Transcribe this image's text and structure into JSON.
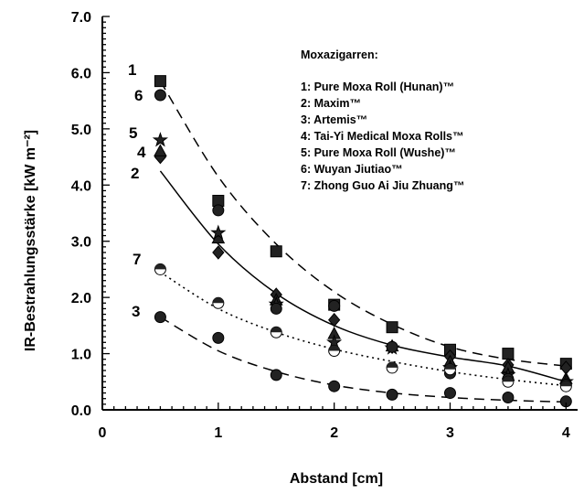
{
  "chart_data": {
    "type": "scatter",
    "xlabel": "Abstand [cm]",
    "ylabel": "IR-Bestrahlungsstärke  [kW m⁻²]",
    "xlim": [
      0,
      4.1
    ],
    "ylim": [
      0,
      7.0
    ],
    "x_ticks": [
      "0",
      "1",
      "2",
      "3",
      "4"
    ],
    "y_ticks": [
      "0.0",
      "1.0",
      "2.0",
      "3.0",
      "4.0",
      "5.0",
      "6.0",
      "7.0"
    ],
    "grid": false,
    "legend": {
      "title": "Moxazigarren:",
      "placement": "top-right",
      "entries": [
        "1: Pure Moxa Roll (Hunan)™",
        "2: Maxim™",
        "3: Artemis™",
        "4: Tai-Yi Medical Moxa Rolls™",
        "5: Pure Moxa Roll (Wushe)™",
        "6: Wuyan Jiutiao™",
        "7: Zhong Guo Ai Jiu Zhuang™"
      ]
    },
    "series_labels": [
      "1",
      "6",
      "5",
      "4",
      "2",
      "7",
      "3"
    ],
    "x": [
      0.5,
      1.0,
      1.5,
      2.0,
      2.5,
      3.0,
      3.5,
      4.0
    ],
    "series": [
      {
        "name": "1",
        "marker": "square",
        "values": [
          5.85,
          3.72,
          2.82,
          1.87,
          1.47,
          1.07,
          1.0,
          0.82
        ]
      },
      {
        "name": "2",
        "marker": "diamond",
        "values": [
          4.5,
          2.8,
          2.05,
          1.6,
          1.12,
          0.95,
          0.8,
          0.75
        ]
      },
      {
        "name": "3",
        "marker": "circle",
        "values": [
          1.65,
          1.28,
          0.62,
          0.42,
          0.27,
          0.3,
          0.22,
          0.15
        ]
      },
      {
        "name": "4",
        "marker": "triangle",
        "values": [
          4.6,
          3.05,
          1.95,
          1.35,
          1.13,
          0.85,
          0.75,
          0.55
        ]
      },
      {
        "name": "5",
        "marker": "star",
        "values": [
          4.8,
          3.15,
          1.88,
          1.2,
          1.1,
          0.75,
          0.62,
          0.5
        ]
      },
      {
        "name": "6",
        "marker": "circle",
        "values": [
          5.6,
          3.55,
          1.8,
          1.85,
          1.12,
          0.65,
          0.55,
          0.45
        ]
      },
      {
        "name": "7",
        "marker": "half-circle",
        "values": [
          2.5,
          1.9,
          1.38,
          1.05,
          0.75,
          0.72,
          0.5,
          0.42
        ]
      }
    ],
    "fits": [
      {
        "series": "1",
        "style": "dashed",
        "values": [
          5.85,
          4.15,
          2.95,
          2.1,
          1.52,
          1.12,
          0.9,
          0.78
        ]
      },
      {
        "series": "2",
        "style": "solid",
        "values": [
          4.25,
          2.95,
          2.07,
          1.5,
          1.15,
          0.94,
          0.78,
          0.5
        ]
      },
      {
        "series": "7",
        "style": "dotted",
        "values": [
          2.45,
          1.8,
          1.38,
          1.08,
          0.86,
          0.68,
          0.54,
          0.43
        ]
      },
      {
        "series": "3",
        "style": "dashed",
        "values": [
          1.65,
          1.05,
          0.68,
          0.44,
          0.3,
          0.22,
          0.17,
          0.14
        ]
      }
    ]
  }
}
